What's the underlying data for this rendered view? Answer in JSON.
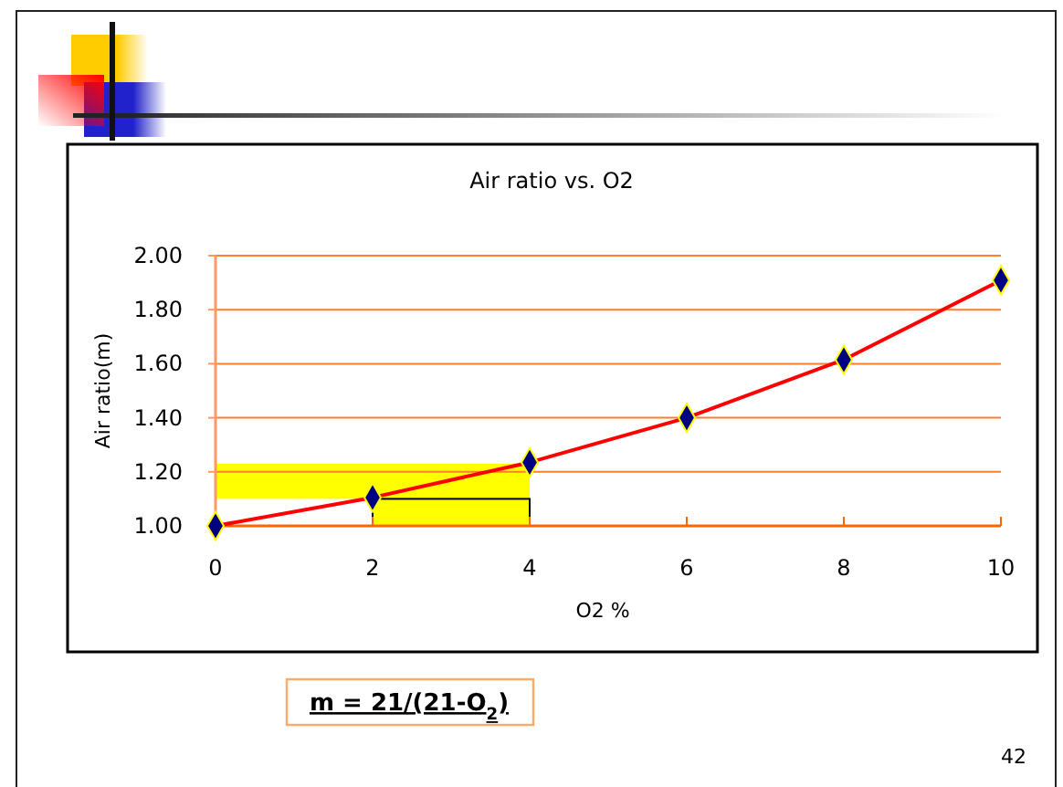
{
  "chart_data": {
    "type": "line",
    "title": "Air ratio vs. O2",
    "xlabel": "O2 %",
    "ylabel": "Air ratio(m)",
    "x": [
      0,
      2,
      4,
      6,
      8,
      10
    ],
    "series": [
      {
        "color": "#ff0000",
        "values": [
          1.0,
          1.105,
          1.235,
          1.4,
          1.615,
          1.909
        ]
      }
    ],
    "xlim": [
      0,
      10
    ],
    "xticks": [
      0,
      2,
      4,
      6,
      8,
      10
    ],
    "ylim": [
      1.0,
      2.0
    ],
    "yticks": [
      {
        "value": 1.0,
        "label": "1.00"
      },
      {
        "value": 1.2,
        "label": "1.20"
      },
      {
        "value": 1.4,
        "label": "1.40"
      },
      {
        "value": 1.6,
        "label": "1.60"
      },
      {
        "value": 1.8,
        "label": "1.80"
      },
      {
        "value": 2.0,
        "label": "2.00"
      }
    ],
    "grid": "y",
    "marker": "diamond",
    "line_style": "solid",
    "bands": [
      {
        "axis": "y",
        "from": 1.1,
        "to": 1.23,
        "color": "#ffff00"
      },
      {
        "axis": "x",
        "from": 2,
        "to": 4,
        "color": "#ffff00"
      }
    ],
    "annotations": [
      "m = 21/(21-O$_{2}$)",
      "42"
    ]
  }
}
